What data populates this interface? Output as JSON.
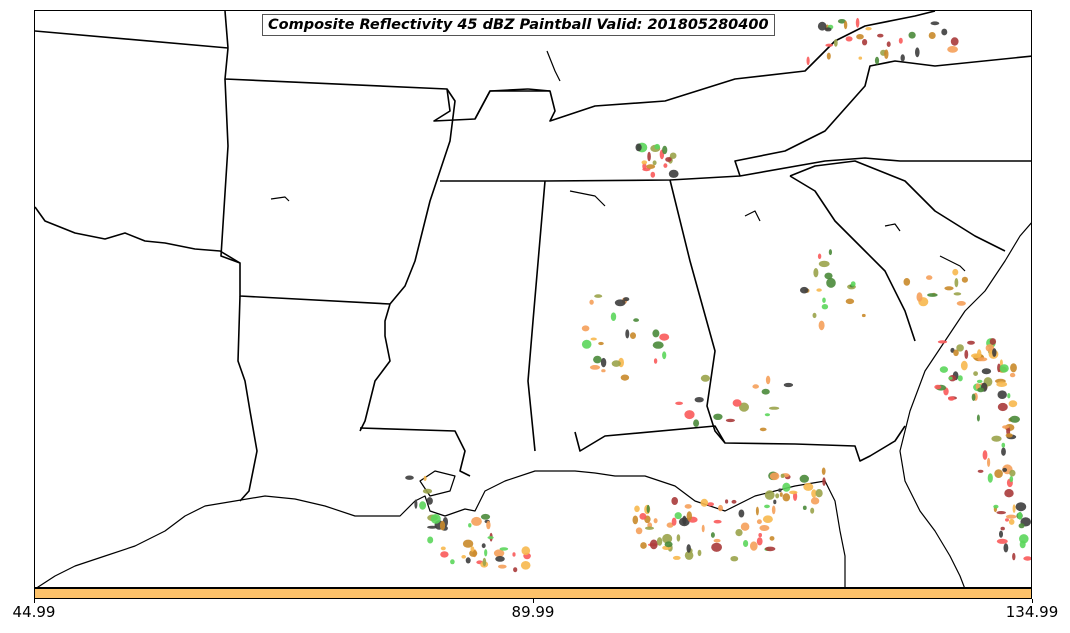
{
  "title": "Composite Reflectivity 45 dBZ Paintball Valid: 201805280400",
  "colorbar": {
    "color": "#fdc26a",
    "ticks": [
      {
        "label": "44.99",
        "value": 44.99
      },
      {
        "label": "89.99",
        "value": 89.99
      },
      {
        "label": "134.99",
        "value": 134.99
      }
    ],
    "min": 44.99,
    "max": 134.99
  },
  "colors": {
    "coastline": "#000000",
    "background": "#ffffff",
    "paintball_palette": [
      "#f5a05a",
      "#5bd65b",
      "#a83a3a",
      "#9aa34a",
      "#fa5a5a",
      "#3d3d3d",
      "#f7b84e",
      "#4a8a3a",
      "#c98a2a"
    ]
  }
}
